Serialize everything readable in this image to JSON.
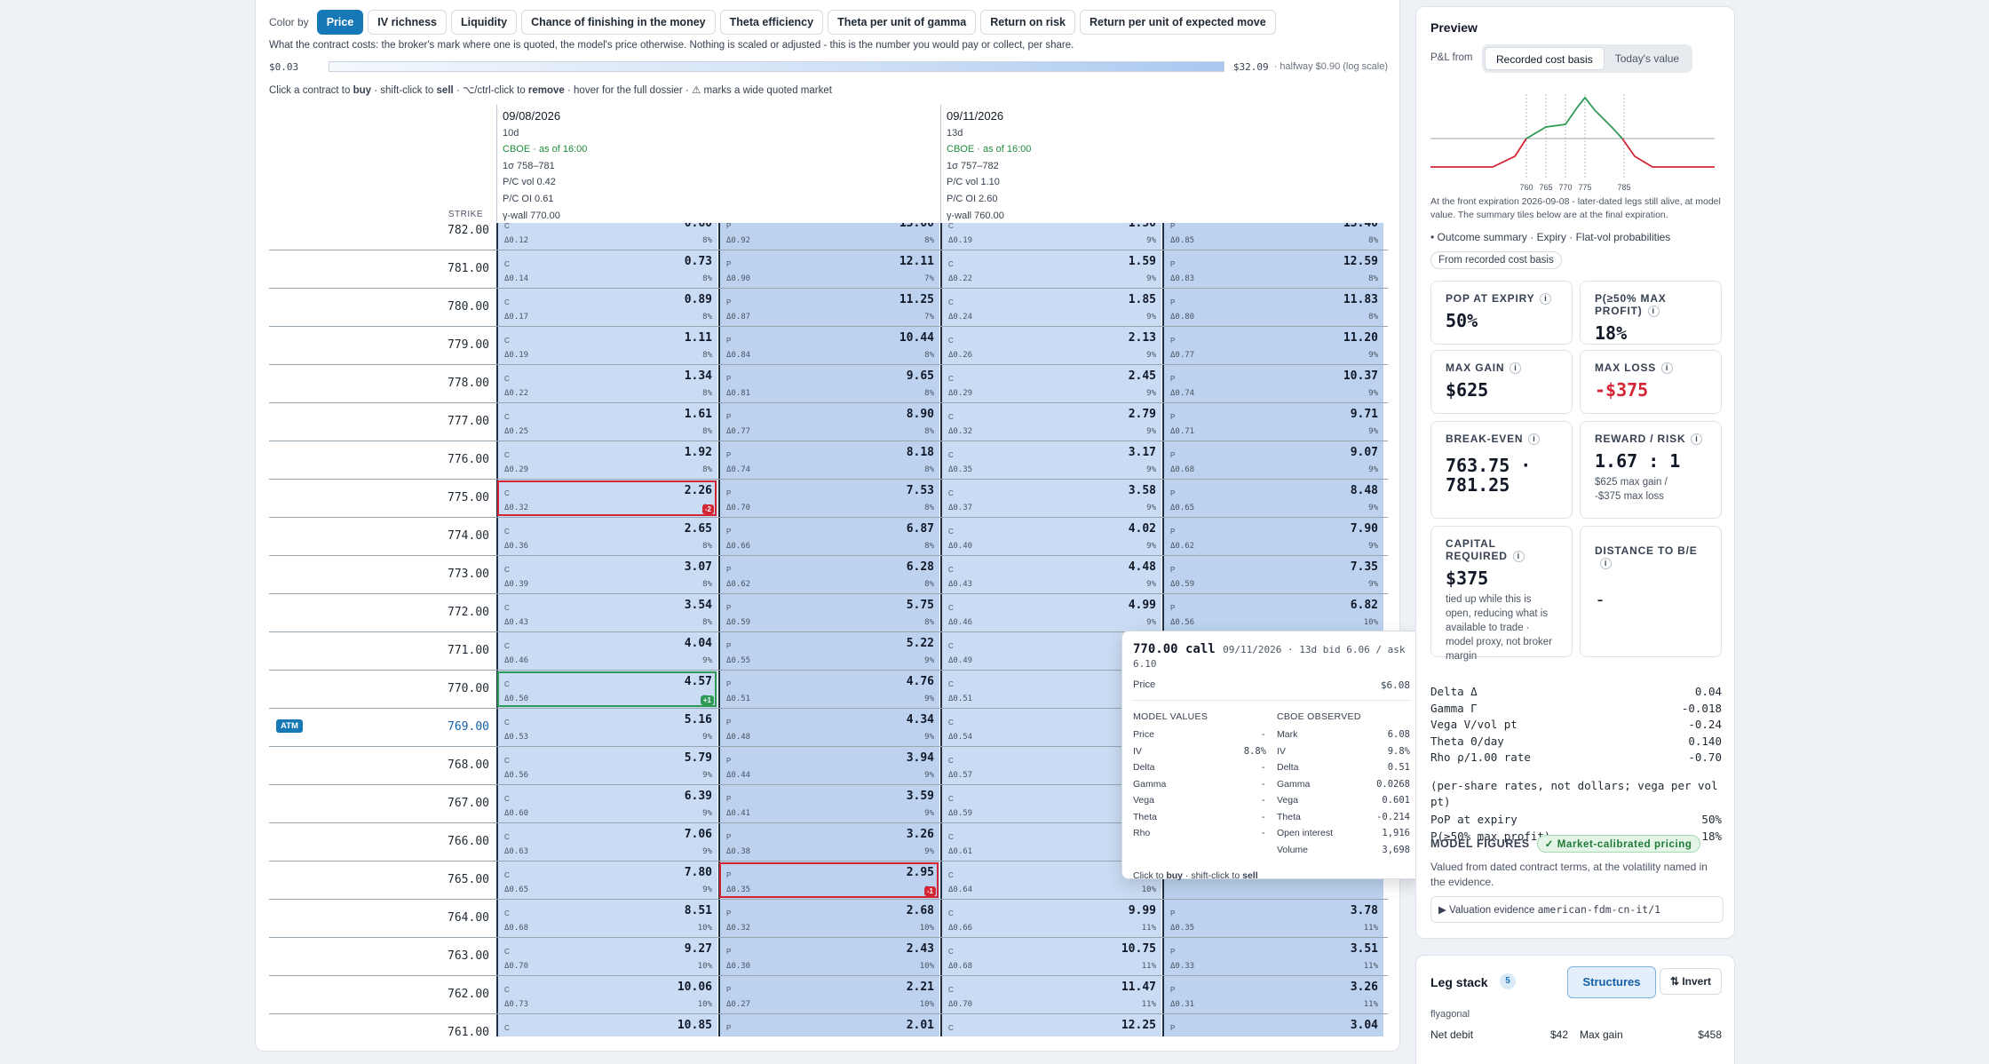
{
  "color_by": {
    "label": "Color by",
    "options": [
      "Price",
      "IV richness",
      "Liquidity",
      "Chance of finishing in the money",
      "Theta efficiency",
      "Theta per unit of gamma",
      "Return on risk",
      "Return per unit of expected move"
    ],
    "active": 0
  },
  "description": "What the contract costs: the broker's mark where one is quoted, the model's price otherwise. Nothing is scaled or adjusted - this is the number you would pay or collect, per share.",
  "scale": {
    "min": "$0.03",
    "max": "$32.09",
    "hint": "· halfway $0.90 (log scale)"
  },
  "help": {
    "a": "Click a contract to ",
    "buy": "buy",
    "b": " · shift-click to ",
    "sell": "sell",
    "c": " · ⌥/ctrl-click to ",
    "remove": "remove",
    "d": " · hover for the full dossier · ⚠ marks a wide quoted market"
  },
  "strike_header": "STRIKE",
  "expirations": [
    {
      "date": "09/08/2026",
      "dte": "10d",
      "source": "CBOE · as of 16:00",
      "range": "1σ 758–781",
      "pcvol": "P/C vol 0.42",
      "pcoi": "P/C OI 0.61",
      "wall": "γ-wall 770.00"
    },
    {
      "date": "09/11/2026",
      "dte": "13d",
      "source": "CBOE · as of 16:00",
      "range": "1σ 757–782",
      "pcvol": "P/C vol 1.10",
      "pcoi": "P/C OI 2.60",
      "wall": "γ-wall 760.00"
    }
  ],
  "rows": [
    {
      "strike": "782.00",
      "c1": [
        "0.60",
        "Δ0.12",
        "8%"
      ],
      "p1": [
        "13.00",
        "Δ0.92",
        "8%"
      ],
      "c2": [
        "1.50",
        "Δ0.19",
        "9%"
      ],
      "p2": [
        "13.40",
        "Δ0.85",
        "8%"
      ]
    },
    {
      "strike": "781.00",
      "c1": [
        "0.73",
        "Δ0.14",
        "8%"
      ],
      "p1": [
        "12.11",
        "Δ0.90",
        "7%"
      ],
      "c2": [
        "1.59",
        "Δ0.22",
        "9%"
      ],
      "p2": [
        "12.59",
        "Δ0.83",
        "8%"
      ]
    },
    {
      "strike": "780.00",
      "c1": [
        "0.89",
        "Δ0.17",
        "8%"
      ],
      "p1": [
        "11.25",
        "Δ0.87",
        "7%"
      ],
      "c2": [
        "1.85",
        "Δ0.24",
        "9%"
      ],
      "p2": [
        "11.83",
        "Δ0.80",
        "8%"
      ]
    },
    {
      "strike": "779.00",
      "c1": [
        "1.11",
        "Δ0.19",
        "8%"
      ],
      "p1": [
        "10.44",
        "Δ0.84",
        "8%"
      ],
      "c2": [
        "2.13",
        "Δ0.26",
        "9%"
      ],
      "p2": [
        "11.20",
        "Δ0.77",
        "9%"
      ]
    },
    {
      "strike": "778.00",
      "c1": [
        "1.34",
        "Δ0.22",
        "8%"
      ],
      "p1": [
        "9.65",
        "Δ0.81",
        "8%"
      ],
      "c2": [
        "2.45",
        "Δ0.29",
        "9%"
      ],
      "p2": [
        "10.37",
        "Δ0.74",
        "9%"
      ]
    },
    {
      "strike": "777.00",
      "c1": [
        "1.61",
        "Δ0.25",
        "8%"
      ],
      "p1": [
        "8.90",
        "Δ0.77",
        "8%"
      ],
      "c2": [
        "2.79",
        "Δ0.32",
        "9%"
      ],
      "p2": [
        "9.71",
        "Δ0.71",
        "9%"
      ]
    },
    {
      "strike": "776.00",
      "c1": [
        "1.92",
        "Δ0.29",
        "8%"
      ],
      "p1": [
        "8.18",
        "Δ0.74",
        "8%"
      ],
      "c2": [
        "3.17",
        "Δ0.35",
        "9%"
      ],
      "p2": [
        "9.07",
        "Δ0.68",
        "9%"
      ]
    },
    {
      "strike": "775.00",
      "c1": [
        "2.26",
        "Δ0.32",
        "8%"
      ],
      "p1": [
        "7.53",
        "Δ0.70",
        "8%"
      ],
      "c2": [
        "3.58",
        "Δ0.37",
        "9%"
      ],
      "p2": [
        "8.48",
        "Δ0.65",
        "9%"
      ],
      "c1_pos": "-2"
    },
    {
      "strike": "774.00",
      "c1": [
        "2.65",
        "Δ0.36",
        "8%"
      ],
      "p1": [
        "6.87",
        "Δ0.66",
        "8%"
      ],
      "c2": [
        "4.02",
        "Δ0.40",
        "9%"
      ],
      "p2": [
        "7.90",
        "Δ0.62",
        "9%"
      ]
    },
    {
      "strike": "773.00",
      "c1": [
        "3.07",
        "Δ0.39",
        "8%"
      ],
      "p1": [
        "6.28",
        "Δ0.62",
        "8%"
      ],
      "c2": [
        "4.48",
        "Δ0.43",
        "9%"
      ],
      "p2": [
        "7.35",
        "Δ0.59",
        "9%"
      ]
    },
    {
      "strike": "772.00",
      "c1": [
        "3.54",
        "Δ0.43",
        "8%"
      ],
      "p1": [
        "5.75",
        "Δ0.59",
        "8%"
      ],
      "c2": [
        "4.99",
        "Δ0.46",
        "9%"
      ],
      "p2": [
        "6.82",
        "Δ0.56",
        "10%"
      ]
    },
    {
      "strike": "771.00",
      "c1": [
        "4.04",
        "Δ0.46",
        "9%"
      ],
      "p1": [
        "5.22",
        "Δ0.55",
        "9%"
      ],
      "c2": [
        "",
        "Δ0.49",
        "9%"
      ],
      "p2": [
        "",
        "",
        ""
      ]
    },
    {
      "strike": "770.00",
      "c1": [
        "4.57",
        "Δ0.50",
        "9%"
      ],
      "p1": [
        "4.76",
        "Δ0.51",
        "9%"
      ],
      "c2": [
        "",
        "Δ0.51",
        "9%"
      ],
      "p2": [
        "",
        "",
        ""
      ],
      "c1_pos": "+1"
    },
    {
      "strike": "769.00",
      "atm": "ATM",
      "c1": [
        "5.16",
        "Δ0.53",
        "9%"
      ],
      "p1": [
        "4.34",
        "Δ0.48",
        "9%"
      ],
      "c2": [
        "",
        "Δ0.54",
        "9%"
      ],
      "p2": [
        "",
        "",
        ""
      ]
    },
    {
      "strike": "768.00",
      "c1": [
        "5.79",
        "Δ0.56",
        "9%"
      ],
      "p1": [
        "3.94",
        "Δ0.44",
        "9%"
      ],
      "c2": [
        "",
        "Δ0.57",
        "9%"
      ],
      "p2": [
        "",
        "",
        ""
      ]
    },
    {
      "strike": "767.00",
      "c1": [
        "6.39",
        "Δ0.60",
        "9%"
      ],
      "p1": [
        "3.59",
        "Δ0.41",
        "9%"
      ],
      "c2": [
        "",
        "Δ0.59",
        "9%"
      ],
      "p2": [
        "",
        "",
        ""
      ]
    },
    {
      "strike": "766.00",
      "c1": [
        "7.06",
        "Δ0.63",
        "9%"
      ],
      "p1": [
        "3.26",
        "Δ0.38",
        "9%"
      ],
      "c2": [
        "",
        "Δ0.61",
        "9%"
      ],
      "p2": [
        "",
        "",
        ""
      ]
    },
    {
      "strike": "765.00",
      "c1": [
        "7.80",
        "Δ0.65",
        "9%"
      ],
      "p1": [
        "2.95",
        "Δ0.35",
        "9%"
      ],
      "c2": [
        "",
        "Δ0.64",
        "10%"
      ],
      "p2": [
        "",
        "",
        ""
      ],
      "p1_pos": "-1"
    },
    {
      "strike": "764.00",
      "c1": [
        "8.51",
        "Δ0.68",
        "10%"
      ],
      "p1": [
        "2.68",
        "Δ0.32",
        "10%"
      ],
      "c2": [
        "9.99",
        "Δ0.66",
        "11%"
      ],
      "p2": [
        "3.78",
        "Δ0.35",
        "11%"
      ]
    },
    {
      "strike": "763.00",
      "c1": [
        "9.27",
        "Δ0.70",
        "10%"
      ],
      "p1": [
        "2.43",
        "Δ0.30",
        "10%"
      ],
      "c2": [
        "10.75",
        "Δ0.68",
        "11%"
      ],
      "p2": [
        "3.51",
        "Δ0.33",
        "11%"
      ]
    },
    {
      "strike": "762.00",
      "c1": [
        "10.06",
        "Δ0.73",
        "10%"
      ],
      "p1": [
        "2.21",
        "Δ0.27",
        "10%"
      ],
      "c2": [
        "11.47",
        "Δ0.70",
        "11%"
      ],
      "p2": [
        "3.26",
        "Δ0.31",
        "11%"
      ]
    },
    {
      "strike": "761.00",
      "c1": [
        "10.85",
        "Δ0.75",
        "10%"
      ],
      "p1": [
        "2.01",
        "Δ0.25",
        "10%"
      ],
      "c2": [
        "12.25",
        "Δ0.72",
        "11%"
      ],
      "p2": [
        "3.04",
        "Δ0.29",
        "11%"
      ]
    }
  ],
  "tooltip": {
    "strike": "770.00 call",
    "meta": "09/11/2026 · 13d  bid 6.06 / ask 6.10",
    "price_label": "Price",
    "price": "$6.08",
    "model_title": "MODEL VALUES",
    "cboe_title": "CBOE OBSERVED",
    "model": [
      [
        "Price",
        "-"
      ],
      [
        "IV",
        "8.8%"
      ],
      [
        "Delta",
        "-"
      ],
      [
        "Gamma",
        "-"
      ],
      [
        "Vega",
        "-"
      ],
      [
        "Theta",
        "-"
      ],
      [
        "Rho",
        "-"
      ]
    ],
    "cboe": [
      [
        "Mark",
        "6.08"
      ],
      [
        "IV",
        "9.8%"
      ],
      [
        "Delta",
        "0.51"
      ],
      [
        "Gamma",
        "0.0268"
      ],
      [
        "Vega",
        "0.601"
      ],
      [
        "Theta",
        "-0.214"
      ],
      [
        "Open interest",
        "1,916"
      ],
      [
        "Volume",
        "3,698"
      ]
    ],
    "foot_a": "Click to ",
    "foot_buy": "buy",
    "foot_b": " · shift-click to ",
    "foot_sell": "sell"
  },
  "preview": {
    "title": "Preview",
    "pl_from": "P&L from",
    "seg": [
      "Recorded cost basis",
      "Today's value"
    ],
    "chart_ticks": [
      "760",
      "765",
      "770",
      "775",
      "785"
    ],
    "note": "At the front expiration 2026-09-08 - later-dated legs still alive, at model value. The summary tiles below are at the final expiration.",
    "outcome": "Outcome summary · Expiry · Flat-vol probabilities",
    "from_basis": "From recorded cost basis",
    "cards": [
      {
        "k": "POP AT EXPIRY",
        "v": "50%"
      },
      {
        "k": "P(≥50% MAX PROFIT)",
        "v": "18%"
      },
      {
        "k": "MAX GAIN",
        "v": "$625"
      },
      {
        "k": "MAX LOSS",
        "v": "-$375"
      },
      {
        "k": "BREAK-EVEN",
        "v1": "763.75 ·",
        "v2": "781.25"
      },
      {
        "k": "REWARD / RISK",
        "v": "1.67 : 1",
        "sub1": "$625 max gain /",
        "sub2": "-$375 max loss"
      },
      {
        "k": "CAPITAL REQUIRED",
        "v": "$375",
        "sub": "tied up while this is open, reducing what is available to trade · model proxy, not broker margin"
      },
      {
        "k": "DISTANCE TO B/E",
        "v": "-"
      }
    ],
    "greeks": [
      [
        "Delta Δ",
        "0.04"
      ],
      [
        "Gamma Γ",
        "-0.018"
      ],
      [
        "Vega V/vol pt",
        "-0.24"
      ],
      [
        "Theta Θ/day",
        "0.140"
      ],
      [
        "Rho ρ/1.00 rate",
        "-0.70"
      ]
    ],
    "greeks_note": "(per-share rates, not dollars; vega per vol pt)",
    "pop": [
      "PoP at expiry",
      "50%"
    ],
    "p50": [
      "P(≥50% max profit)",
      "18%"
    ],
    "mf_title": "MODEL FIGURES",
    "mf_badge": "✓ Market-calibrated pricing",
    "mf_text": "Valued from dated contract terms, at the volatility named in the evidence.",
    "evidence": "▶ Valuation evidence",
    "evidence_id": "american-fdm-cn-it/1"
  },
  "legs": {
    "title": "Leg stack",
    "count": "5",
    "structures": "Structures",
    "invert": "⇅ Invert",
    "name": "flyagonal",
    "net_debit_l": "Net debit",
    "net_debit": "$42",
    "max_gain_l": "Max gain",
    "max_gain": "$458"
  }
}
